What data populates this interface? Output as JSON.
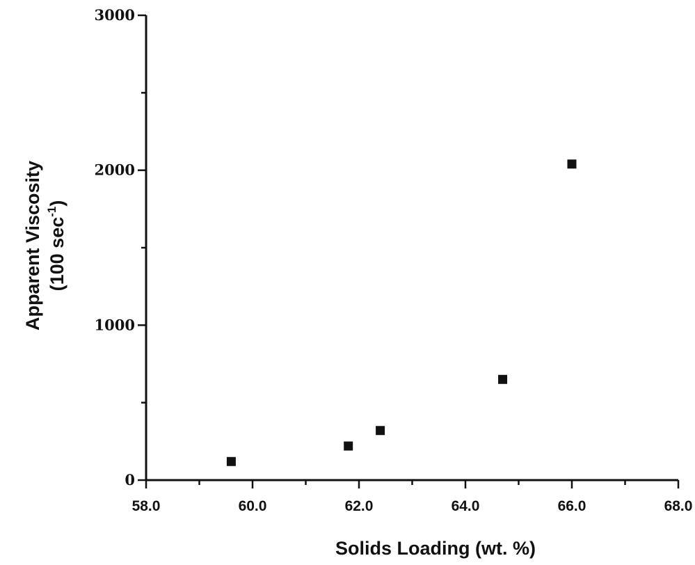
{
  "chart_data": {
    "type": "scatter",
    "title": "",
    "xlabel": "Solids Loading (wt. %)",
    "ylabel_line1": "Apparent Viscosity",
    "ylabel_line2_prefix": "(100 sec",
    "ylabel_line2_exp": "-1",
    "ylabel_line2_suffix": ")",
    "xlim": [
      58.0,
      68.0
    ],
    "ylim": [
      0,
      3000
    ],
    "xticks": [
      58.0,
      60.0,
      62.0,
      64.0,
      66.0,
      68.0
    ],
    "xtick_labels": [
      "58.0",
      "60.0",
      "62.0",
      "64.0",
      "66.0",
      "68.0"
    ],
    "yticks": [
      0,
      1000,
      2000,
      3000
    ],
    "ytick_labels": [
      "0",
      "1000",
      "2000",
      "3000"
    ],
    "x_minor_step": 1.0,
    "y_minor_step": 500,
    "grid": false,
    "legend": "none",
    "marker": "filled-square",
    "marker_color": "#111111",
    "series": [
      {
        "points": [
          {
            "x": 59.6,
            "y": 120
          },
          {
            "x": 61.8,
            "y": 220
          },
          {
            "x": 62.4,
            "y": 320
          },
          {
            "x": 64.7,
            "y": 650
          },
          {
            "x": 66.0,
            "y": 2040
          }
        ]
      }
    ]
  }
}
